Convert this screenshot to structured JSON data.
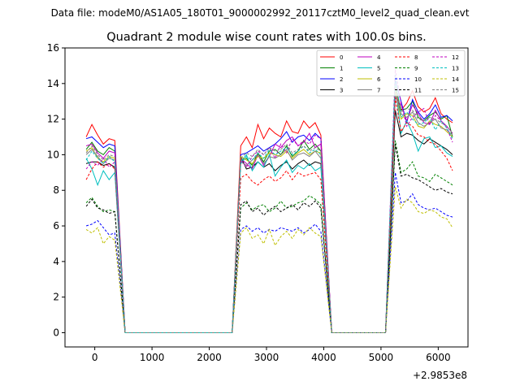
{
  "chart_data": {
    "type": "line",
    "suptitle": "Data file: modeM0/AS1A05_180T01_9000002992_20117cztM0_level2_quad_clean.evt",
    "title": "Quadrant 2 module wise count rates with 100.0s bins.",
    "xlabel": "",
    "ylabel": "",
    "x_offset_label": "+2.9853e8",
    "xlim": [
      -520,
      6520
    ],
    "ylim": [
      -0.8,
      16
    ],
    "xticks": [
      0,
      1000,
      2000,
      3000,
      4000,
      5000,
      6000
    ],
    "yticks": [
      0,
      2,
      4,
      6,
      8,
      10,
      12,
      14,
      16
    ],
    "legend_position": "top-right",
    "segments": [
      {
        "x_start": -150,
        "x_end": 350,
        "bin": 100
      },
      {
        "x_start": 2550,
        "x_end": 3950,
        "bin": 100
      },
      {
        "x_start": 5250,
        "x_end": 6250,
        "bin": 100
      }
    ],
    "zero_ranges": [
      [
        530,
        2400
      ],
      [
        4140,
        5080
      ]
    ],
    "series": [
      {
        "name": "0",
        "color": "#ff0000",
        "dash": false,
        "values": [
          [
            11.0,
            11.7,
            11.1,
            10.6,
            10.9,
            10.8
          ],
          [
            10.5,
            11.0,
            10.4,
            11.7,
            10.9,
            11.5,
            11.2,
            11.0,
            11.9,
            11.3,
            11.2,
            11.9,
            11.5,
            11.8,
            11.1
          ],
          [
            13.5,
            12.5,
            12.9,
            13.6,
            12.7,
            12.4,
            12.6,
            13.2,
            12.3,
            12.0,
            11.8
          ]
        ]
      },
      {
        "name": "1",
        "color": "#008000",
        "dash": false,
        "values": [
          [
            10.3,
            10.7,
            10.2,
            10.0,
            10.4,
            10.2
          ],
          [
            9.7,
            9.8,
            9.4,
            10.1,
            9.6,
            10.2,
            10.3,
            10.0,
            10.5,
            9.9,
            10.2,
            10.8,
            10.3,
            10.6,
            10.2
          ],
          [
            13.9,
            12.5,
            12.6,
            13.0,
            12.1,
            11.9,
            12.2,
            12.4,
            12.0,
            12.2,
            11.0
          ]
        ]
      },
      {
        "name": "2",
        "color": "#0000ff",
        "dash": false,
        "values": [
          [
            10.9,
            11.0,
            10.7,
            10.4,
            10.6,
            10.5
          ],
          [
            10.0,
            10.1,
            10.3,
            10.5,
            10.2,
            10.4,
            10.6,
            10.9,
            11.3,
            10.7,
            11.0,
            11.1,
            10.8,
            11.2,
            10.9
          ],
          [
            14.2,
            13.0,
            11.8,
            13.1,
            12.4,
            12.0,
            12.3,
            12.8,
            12.1,
            12.2,
            11.9
          ]
        ]
      },
      {
        "name": "3",
        "color": "#000000",
        "dash": false,
        "values": [
          [
            9.5,
            9.6,
            9.6,
            9.4,
            9.5,
            9.3
          ],
          [
            9.9,
            9.2,
            9.3,
            9.6,
            9.3,
            9.5,
            9.1,
            9.4,
            9.6,
            9.2,
            9.5,
            9.7,
            9.4,
            9.6,
            9.5
          ],
          [
            12.5,
            11.0,
            11.2,
            11.1,
            10.8,
            10.6,
            10.9,
            10.7,
            10.5,
            10.3,
            10.0
          ]
        ]
      },
      {
        "name": "4",
        "color": "#bf00bf",
        "dash": false,
        "values": [
          [
            10.5,
            10.6,
            10.1,
            9.8,
            10.2,
            10.1
          ],
          [
            9.8,
            9.5,
            9.2,
            10.0,
            9.4,
            9.9,
            10.6,
            10.4,
            10.8,
            11.0,
            10.5,
            10.7,
            11.2,
            10.4,
            10.6
          ],
          [
            13.2,
            12.8,
            11.9,
            12.8,
            12.3,
            11.8,
            11.7,
            12.5,
            11.9,
            11.6,
            11.2
          ]
        ]
      },
      {
        "name": "5",
        "color": "#00bfbf",
        "dash": false,
        "values": [
          [
            9.8,
            9.2,
            8.3,
            9.1,
            8.6,
            9.0
          ],
          [
            9.6,
            10.0,
            9.1,
            9.6,
            9.3,
            10.0,
            8.8,
            9.3,
            9.7,
            9.0,
            9.4,
            9.2,
            9.5,
            9.1,
            9.3
          ],
          [
            13.9,
            11.2,
            11.9,
            11.2,
            10.2,
            10.9,
            11.0,
            10.4,
            10.5,
            10.1,
            9.9
          ]
        ]
      },
      {
        "name": "6",
        "color": "#bfbf00",
        "dash": false,
        "values": [
          [
            10.2,
            10.4,
            9.8,
            9.6,
            9.9,
            9.8
          ],
          [
            9.9,
            9.7,
            9.5,
            9.9,
            9.8,
            10.1,
            10.0,
            9.9,
            10.2,
            9.8,
            10.1,
            10.3,
            10.0,
            10.2,
            10.1
          ],
          [
            13.6,
            12.0,
            12.3,
            12.2,
            11.6,
            11.5,
            11.9,
            11.7,
            11.6,
            11.3,
            11.0
          ]
        ]
      },
      {
        "name": "7",
        "color": "#808080",
        "dash": false,
        "values": [
          [
            10.0,
            10.3,
            9.9,
            9.5,
            9.8,
            9.7
          ],
          [
            9.6,
            9.4,
            9.7,
            10.0,
            9.5,
            9.9,
            9.8,
            10.0,
            10.3,
            9.7,
            10.0,
            10.1,
            9.9,
            10.2,
            9.8
          ],
          [
            13.4,
            12.3,
            12.1,
            12.4,
            11.8,
            11.6,
            11.8,
            12.0,
            11.5,
            11.4,
            11.1
          ]
        ]
      },
      {
        "name": "8",
        "color": "#ff0000",
        "dash": true,
        "values": [
          [
            8.6,
            9.2,
            9.6,
            9.3,
            9.5,
            9.2
          ],
          [
            8.7,
            8.9,
            8.5,
            8.3,
            8.6,
            8.8,
            8.5,
            8.7,
            9.1,
            8.6,
            9.0,
            8.8,
            8.9,
            9.0,
            8.6
          ],
          [
            13.2,
            11.3,
            11.8,
            11.6,
            11.1,
            11.0,
            10.7,
            10.6,
            10.2,
            9.8,
            9.1
          ]
        ]
      },
      {
        "name": "9",
        "color": "#008000",
        "dash": true,
        "values": [
          [
            7.3,
            7.6,
            7.1,
            6.8,
            6.9,
            6.8
          ],
          [
            7.0,
            7.3,
            6.9,
            7.1,
            7.2,
            6.8,
            7.0,
            7.4,
            7.0,
            7.1,
            7.3,
            7.4,
            7.7,
            7.5,
            7.2
          ],
          [
            10.8,
            9.0,
            9.2,
            9.6,
            8.8,
            8.7,
            8.5,
            8.9,
            8.7,
            8.5,
            8.3
          ]
        ]
      },
      {
        "name": "10",
        "color": "#0000ff",
        "dash": true,
        "values": [
          [
            6.0,
            6.1,
            6.3,
            5.9,
            5.5,
            5.6
          ],
          [
            5.8,
            6.0,
            5.7,
            5.9,
            5.6,
            5.8,
            5.7,
            5.9,
            5.8,
            5.7,
            5.9,
            5.6,
            5.8,
            6.1,
            5.7
          ],
          [
            9.0,
            7.3,
            7.4,
            7.8,
            7.2,
            7.0,
            6.9,
            7.0,
            6.8,
            6.6,
            6.5
          ]
        ]
      },
      {
        "name": "11",
        "color": "#000000",
        "dash": true,
        "values": [
          [
            7.1,
            7.5,
            7.0,
            6.9,
            6.7,
            6.8
          ],
          [
            7.2,
            7.4,
            6.8,
            7.0,
            6.6,
            6.9,
            7.1,
            6.8,
            7.0,
            7.2,
            6.9,
            7.3,
            7.1,
            7.4,
            7.0
          ],
          [
            10.6,
            8.8,
            8.9,
            8.7,
            8.6,
            8.4,
            8.2,
            8.0,
            8.1,
            7.9,
            7.8
          ]
        ]
      },
      {
        "name": "12",
        "color": "#bf00bf",
        "dash": true,
        "values": [
          [
            9.2,
            9.6,
            9.4,
            9.8,
            9.3,
            9.6
          ],
          [
            9.7,
            9.3,
            9.9,
            10.2,
            10.0,
            10.4,
            9.8,
            10.6,
            10.1,
            10.9,
            10.5,
            10.8,
            10.6,
            11.1,
            10.9
          ],
          [
            14.8,
            12.9,
            11.6,
            12.1,
            12.4,
            12.6,
            11.7,
            12.2,
            11.9,
            11.5,
            10.7
          ]
        ]
      },
      {
        "name": "13",
        "color": "#00bfbf",
        "dash": true,
        "values": [
          [
            9.7,
            10.2,
            9.8,
            9.5,
            9.9,
            9.6
          ],
          [
            9.5,
            9.9,
            9.7,
            10.1,
            9.8,
            10.3,
            10.0,
            10.2,
            10.4,
            10.0,
            10.2,
            10.5,
            10.1,
            10.3,
            10.0
          ],
          [
            14.5,
            12.1,
            12.4,
            12.0,
            11.7,
            11.8,
            12.1,
            11.4,
            11.9,
            11.5,
            10.9
          ]
        ]
      },
      {
        "name": "14",
        "color": "#bfbf00",
        "dash": true,
        "values": [
          [
            5.8,
            5.6,
            5.9,
            5.0,
            5.4,
            5.2
          ],
          [
            5.6,
            5.9,
            5.3,
            5.5,
            5.0,
            5.8,
            4.9,
            5.4,
            5.7,
            5.3,
            5.8,
            5.5,
            5.9,
            5.6,
            5.4
          ],
          [
            8.2,
            7.0,
            7.5,
            7.3,
            6.8,
            6.7,
            6.9,
            6.8,
            6.5,
            6.4,
            5.9
          ]
        ]
      },
      {
        "name": "15",
        "color": "#808080",
        "dash": true,
        "values": [
          [
            10.1,
            10.5,
            10.0,
            9.7,
            10.0,
            9.9
          ],
          [
            9.8,
            10.1,
            9.9,
            10.3,
            10.0,
            10.4,
            10.2,
            10.3,
            10.6,
            10.1,
            10.3,
            10.5,
            10.2,
            10.4,
            10.2
          ],
          [
            13.8,
            12.4,
            12.6,
            12.5,
            12.0,
            11.9,
            12.1,
            12.0,
            11.8,
            11.6,
            11.2
          ]
        ]
      }
    ]
  }
}
